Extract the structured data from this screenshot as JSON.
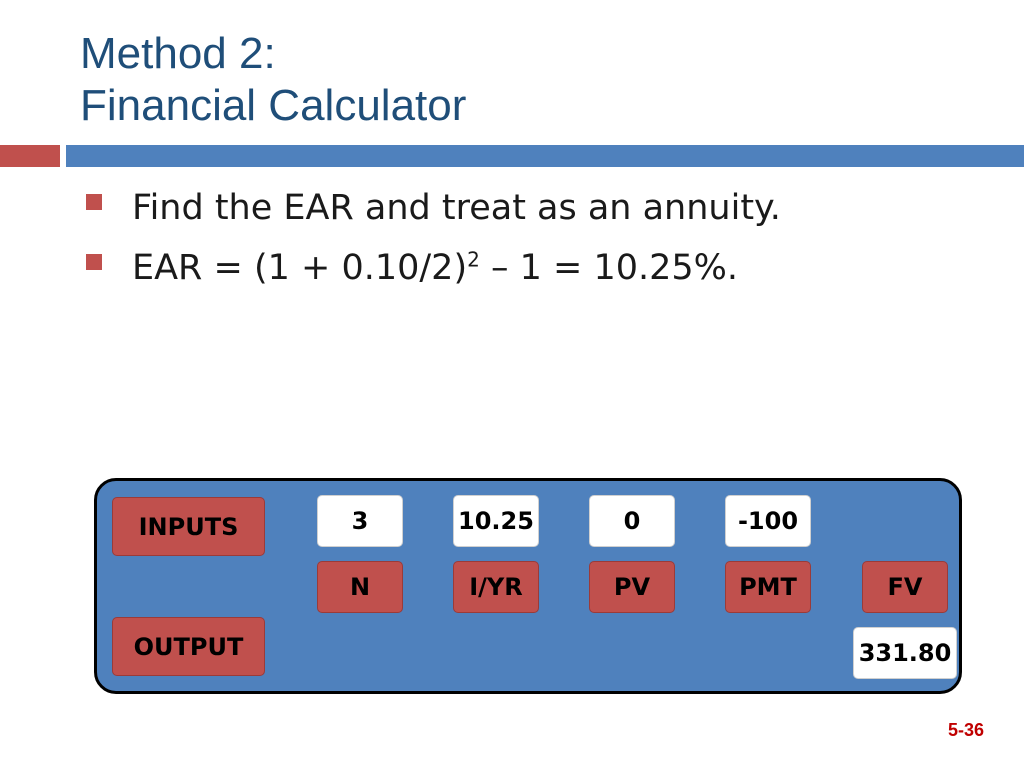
{
  "slide": {
    "title_line1": "Method 2:",
    "title_line2": "Financial Calculator",
    "bullets": {
      "b1": "Find the EAR and treat as an annuity.",
      "b2_main": "EAR = (1 + 0.10/2)",
      "b2_sup": "2",
      "b2_tail": " – 1 = 10.25%."
    },
    "page_number": "5-36"
  },
  "calculator": {
    "inputs_label": "INPUTS",
    "output_label": "OUTPUT",
    "values": {
      "n": "3",
      "iyr": "10.25",
      "pv": "0",
      "pmt": "-100"
    },
    "keys": {
      "n": "N",
      "iyr": "I/YR",
      "pv": "PV",
      "pmt": "PMT",
      "fv": "FV"
    },
    "output_value": "331.80"
  },
  "colors": {
    "title": "#1f4e79",
    "accent_red": "#c0504d",
    "accent_blue": "#4f81bd",
    "page_number": "#c00000"
  }
}
